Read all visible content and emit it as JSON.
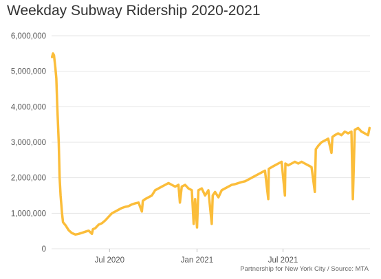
{
  "colors": {
    "line": "#FBBD3A",
    "grid": "#e4e4e4",
    "axis_text": "#555555"
  },
  "chart_data": {
    "type": "line",
    "title": "Weekday Subway Ridership 2020-2021",
    "source": "Partnership for New York City / Source: MTA",
    "xlabel": "",
    "ylabel": "",
    "ylim": [
      0,
      6000000
    ],
    "y_ticks": [
      0,
      1000000,
      2000000,
      3000000,
      4000000,
      5000000,
      6000000
    ],
    "y_tick_labels": [
      "0",
      "1,000,000",
      "2,000,000",
      "3,000,000",
      "4,000,000",
      "5,000,000",
      "6,000,000"
    ],
    "xlim": [
      "2020-03-01",
      "2021-12-31"
    ],
    "x_ticks": [
      "2020-07-01",
      "2021-01-01",
      "2021-07-01"
    ],
    "x_tick_labels": [
      "Jul 2020",
      "Jan 2021",
      "Jul 2021"
    ],
    "grid": "horizontal",
    "series": [
      {
        "points": [
          [
            "2020-03-02",
            5400000
          ],
          [
            "2020-03-04",
            5500000
          ],
          [
            "2020-03-06",
            5450000
          ],
          [
            "2020-03-09",
            5100000
          ],
          [
            "2020-03-11",
            4800000
          ],
          [
            "2020-03-13",
            4000000
          ],
          [
            "2020-03-16",
            3000000
          ],
          [
            "2020-03-18",
            2000000
          ],
          [
            "2020-03-20",
            1500000
          ],
          [
            "2020-03-23",
            1000000
          ],
          [
            "2020-03-25",
            750000
          ],
          [
            "2020-03-31",
            650000
          ],
          [
            "2020-04-06",
            520000
          ],
          [
            "2020-04-13",
            440000
          ],
          [
            "2020-04-20",
            400000
          ],
          [
            "2020-04-27",
            420000
          ],
          [
            "2020-05-04",
            450000
          ],
          [
            "2020-05-11",
            480000
          ],
          [
            "2020-05-18",
            510000
          ],
          [
            "2020-05-25",
            420000
          ],
          [
            "2020-05-27",
            550000
          ],
          [
            "2020-06-01",
            580000
          ],
          [
            "2020-06-08",
            680000
          ],
          [
            "2020-06-15",
            720000
          ],
          [
            "2020-06-22",
            800000
          ],
          [
            "2020-06-29",
            900000
          ],
          [
            "2020-07-06",
            1000000
          ],
          [
            "2020-07-13",
            1050000
          ],
          [
            "2020-07-20",
            1100000
          ],
          [
            "2020-07-27",
            1150000
          ],
          [
            "2020-08-03",
            1180000
          ],
          [
            "2020-08-10",
            1200000
          ],
          [
            "2020-08-17",
            1250000
          ],
          [
            "2020-08-24",
            1280000
          ],
          [
            "2020-08-31",
            1300000
          ],
          [
            "2020-09-07",
            1050000
          ],
          [
            "2020-09-09",
            1350000
          ],
          [
            "2020-09-14",
            1400000
          ],
          [
            "2020-09-21",
            1450000
          ],
          [
            "2020-09-28",
            1500000
          ],
          [
            "2020-10-05",
            1650000
          ],
          [
            "2020-10-12",
            1700000
          ],
          [
            "2020-10-19",
            1750000
          ],
          [
            "2020-10-26",
            1800000
          ],
          [
            "2020-11-02",
            1850000
          ],
          [
            "2020-11-09",
            1800000
          ],
          [
            "2020-11-16",
            1750000
          ],
          [
            "2020-11-23",
            1800000
          ],
          [
            "2020-11-26",
            1300000
          ],
          [
            "2020-11-30",
            1750000
          ],
          [
            "2020-12-07",
            1800000
          ],
          [
            "2020-12-14",
            1700000
          ],
          [
            "2020-12-21",
            1650000
          ],
          [
            "2020-12-25",
            700000
          ],
          [
            "2020-12-28",
            1400000
          ],
          [
            "2021-01-01",
            600000
          ],
          [
            "2021-01-04",
            1650000
          ],
          [
            "2021-01-11",
            1700000
          ],
          [
            "2021-01-18",
            1500000
          ],
          [
            "2021-01-25",
            1650000
          ],
          [
            "2021-02-01",
            700000
          ],
          [
            "2021-02-03",
            1500000
          ],
          [
            "2021-02-08",
            1600000
          ],
          [
            "2021-02-15",
            1450000
          ],
          [
            "2021-02-22",
            1650000
          ],
          [
            "2021-03-01",
            1700000
          ],
          [
            "2021-03-08",
            1750000
          ],
          [
            "2021-03-15",
            1800000
          ],
          [
            "2021-03-22",
            1820000
          ],
          [
            "2021-03-29",
            1850000
          ],
          [
            "2021-04-05",
            1880000
          ],
          [
            "2021-04-12",
            1900000
          ],
          [
            "2021-04-19",
            1950000
          ],
          [
            "2021-04-26",
            2000000
          ],
          [
            "2021-05-03",
            2050000
          ],
          [
            "2021-05-10",
            2100000
          ],
          [
            "2021-05-17",
            2150000
          ],
          [
            "2021-05-24",
            2200000
          ],
          [
            "2021-05-31",
            1400000
          ],
          [
            "2021-06-01",
            2250000
          ],
          [
            "2021-06-07",
            2300000
          ],
          [
            "2021-06-14",
            2350000
          ],
          [
            "2021-06-21",
            2400000
          ],
          [
            "2021-06-28",
            2450000
          ],
          [
            "2021-07-05",
            1500000
          ],
          [
            "2021-07-06",
            2400000
          ],
          [
            "2021-07-12",
            2350000
          ],
          [
            "2021-07-19",
            2400000
          ],
          [
            "2021-07-26",
            2450000
          ],
          [
            "2021-08-02",
            2400000
          ],
          [
            "2021-08-09",
            2450000
          ],
          [
            "2021-08-16",
            2400000
          ],
          [
            "2021-08-23",
            2350000
          ],
          [
            "2021-08-30",
            2300000
          ],
          [
            "2021-09-06",
            1600000
          ],
          [
            "2021-09-08",
            2800000
          ],
          [
            "2021-09-13",
            2900000
          ],
          [
            "2021-09-20",
            3000000
          ],
          [
            "2021-09-27",
            3050000
          ],
          [
            "2021-10-04",
            3100000
          ],
          [
            "2021-10-11",
            2700000
          ],
          [
            "2021-10-13",
            3150000
          ],
          [
            "2021-10-18",
            3200000
          ],
          [
            "2021-10-25",
            3250000
          ],
          [
            "2021-11-01",
            3200000
          ],
          [
            "2021-11-08",
            3300000
          ],
          [
            "2021-11-15",
            3250000
          ],
          [
            "2021-11-22",
            3300000
          ],
          [
            "2021-11-25",
            1400000
          ],
          [
            "2021-11-29",
            3350000
          ],
          [
            "2021-12-06",
            3400000
          ],
          [
            "2021-12-13",
            3300000
          ],
          [
            "2021-12-20",
            3250000
          ],
          [
            "2021-12-27",
            3200000
          ],
          [
            "2021-12-30",
            3400000
          ]
        ]
      }
    ]
  }
}
